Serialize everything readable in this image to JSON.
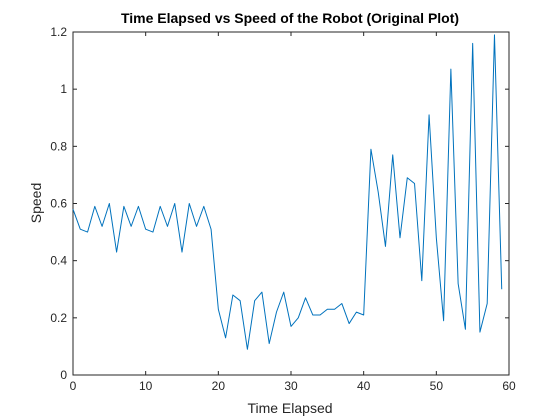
{
  "chart_data": {
    "type": "line",
    "title": "Time Elapsed vs Speed of the Robot (Original Plot)",
    "xlabel": "Time Elapsed",
    "ylabel": "Speed",
    "xlim": [
      0,
      60
    ],
    "ylim": [
      0,
      1.2
    ],
    "xticks": [
      0,
      10,
      20,
      30,
      40,
      50,
      60
    ],
    "xtick_labels": [
      "0",
      "10",
      "20",
      "30",
      "40",
      "50",
      "60"
    ],
    "yticks": [
      0,
      0.2,
      0.4,
      0.6,
      0.8,
      1,
      1.2
    ],
    "ytick_labels": [
      "0",
      "0.2",
      "0.4",
      "0.6",
      "0.8",
      "1",
      "1.2"
    ],
    "grid": false,
    "series": [
      {
        "color": "#0072BD",
        "x": [
          0,
          1,
          2,
          3,
          4,
          5,
          6,
          7,
          8,
          9,
          10,
          11,
          12,
          13,
          14,
          15,
          16,
          17,
          18,
          19,
          20,
          21,
          22,
          23,
          24,
          25,
          26,
          27,
          28,
          29,
          30,
          31,
          32,
          33,
          34,
          35,
          36,
          37,
          38,
          39,
          40,
          41,
          42,
          43,
          44,
          45,
          46,
          47,
          48,
          49,
          50,
          51,
          52,
          53,
          54,
          55,
          56,
          57,
          58,
          59
        ],
        "y": [
          0.58,
          0.51,
          0.5,
          0.59,
          0.52,
          0.6,
          0.43,
          0.59,
          0.52,
          0.59,
          0.51,
          0.5,
          0.59,
          0.52,
          0.6,
          0.43,
          0.6,
          0.52,
          0.59,
          0.51,
          0.23,
          0.13,
          0.28,
          0.26,
          0.09,
          0.26,
          0.29,
          0.11,
          0.22,
          0.29,
          0.17,
          0.2,
          0.27,
          0.21,
          0.21,
          0.23,
          0.23,
          0.25,
          0.18,
          0.22,
          0.21,
          0.79,
          0.64,
          0.45,
          0.77,
          0.48,
          0.69,
          0.67,
          0.33,
          0.91,
          0.48,
          0.19,
          1.07,
          0.32,
          0.16,
          1.16,
          0.15,
          0.25,
          1.19,
          0.3
        ]
      }
    ]
  }
}
